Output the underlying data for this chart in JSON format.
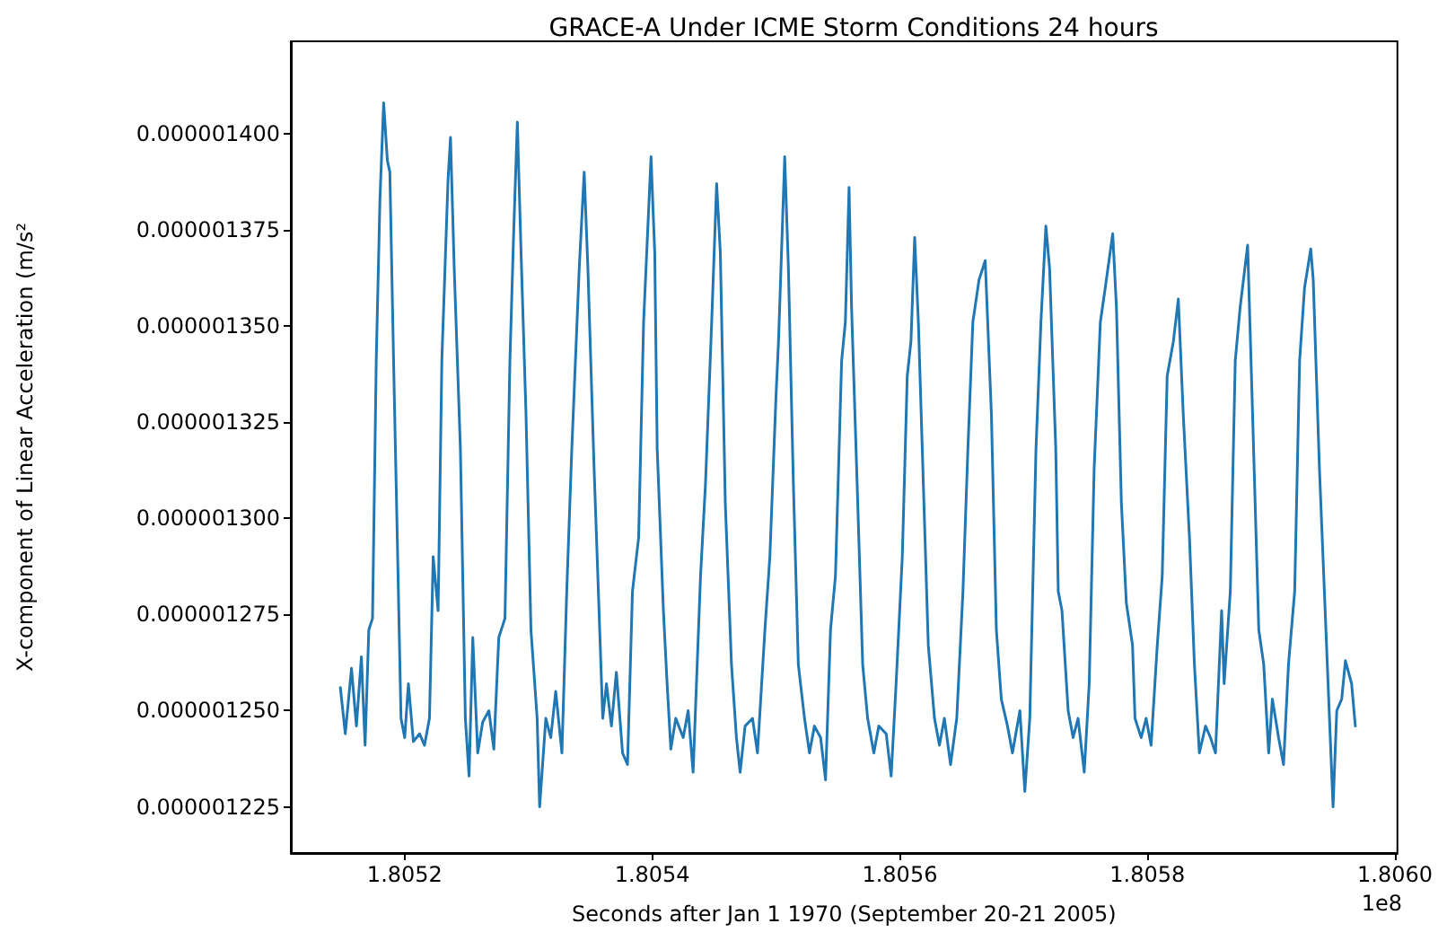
{
  "chart_data": {
    "type": "line",
    "title": "GRACE-A Under ICME Storm Conditions 24 hours",
    "xlabel": "Seconds after Jan 1 1970 (September 20-21 2005)",
    "ylabel": "X-component of Linear Acceleration (m/s²",
    "annotations": [
      "1e8"
    ],
    "xlim": [
      1.805108,
      1.806002
    ],
    "ylim": [
      1.213e-06,
      1.424e-06
    ],
    "xticks": [
      1.8052,
      1.8054,
      1.8056,
      1.8058,
      {
        "value": 1.806,
        "label": "1.8060"
      }
    ],
    "yticks": [
      {
        "value": 1.225e-06,
        "label": "0.000001225"
      },
      {
        "value": 1.25e-06,
        "label": "0.000001250"
      },
      {
        "value": 1.275e-06,
        "label": "0.000001275"
      },
      {
        "value": 1.3e-06,
        "label": "0.000001300"
      },
      {
        "value": 1.325e-06,
        "label": "0.000001325"
      },
      {
        "value": 1.35e-06,
        "label": "0.000001350"
      },
      {
        "value": 1.375e-06,
        "label": "0.000001375"
      },
      {
        "value": 1.4e-06,
        "label": "0.000001400"
      }
    ],
    "marker": "none",
    "line_style": "solid",
    "series": [
      {
        "color": "#1f77b4",
        "x": [
          1.805148,
          1.805152,
          1.805157,
          1.805161,
          1.805165,
          1.805168,
          1.805171,
          1.805174,
          1.805177,
          1.80518,
          1.805183,
          1.805186,
          1.805188,
          1.805191,
          1.805194,
          1.805197,
          1.8052,
          1.805203,
          1.805207,
          1.805212,
          1.805216,
          1.80522,
          1.805223,
          1.805227,
          1.80523,
          1.805235,
          1.805237,
          1.80524,
          1.805245,
          1.805249,
          1.805252,
          1.805255,
          1.805259,
          1.805263,
          1.805268,
          1.805272,
          1.805276,
          1.805281,
          1.805285,
          1.805288,
          1.805291,
          1.805294,
          1.805298,
          1.805302,
          1.805307,
          1.805309,
          1.805314,
          1.805318,
          1.805322,
          1.805327,
          1.805331,
          1.805335,
          1.805341,
          1.805345,
          1.805348,
          1.805353,
          1.805357,
          1.80536,
          1.805363,
          1.805367,
          1.805371,
          1.805376,
          1.80538,
          1.805384,
          1.805389,
          1.805393,
          1.805399,
          1.805402,
          1.805404,
          1.805409,
          1.805412,
          1.805415,
          1.805419,
          1.805425,
          1.805429,
          1.805433,
          1.805439,
          1.805443,
          1.805448,
          1.805452,
          1.805455,
          1.805459,
          1.805464,
          1.805468,
          1.805471,
          1.805475,
          1.805481,
          1.805485,
          1.805491,
          1.805495,
          1.8055,
          1.805502,
          1.805507,
          1.80551,
          1.805514,
          1.805518,
          1.805523,
          1.805527,
          1.805531,
          1.805536,
          1.80554,
          1.805544,
          1.805548,
          1.805553,
          1.805556,
          1.805559,
          1.805561,
          1.805566,
          1.80557,
          1.805574,
          1.805579,
          1.805583,
          1.805589,
          1.805593,
          1.805597,
          1.805602,
          1.805606,
          1.805609,
          1.805612,
          1.805615,
          1.805619,
          1.805623,
          1.805628,
          1.805632,
          1.805636,
          1.805641,
          1.805646,
          1.805651,
          1.805655,
          1.805659,
          1.805664,
          1.805669,
          1.805674,
          1.805678,
          1.805682,
          1.805687,
          1.805691,
          1.805697,
          1.805701,
          1.805705,
          1.80571,
          1.805714,
          1.805718,
          1.805721,
          1.805726,
          1.805728,
          1.805731,
          1.805736,
          1.80574,
          1.805744,
          1.805749,
          1.805753,
          1.805757,
          1.805762,
          1.805766,
          1.805772,
          1.805775,
          1.805779,
          1.805783,
          1.805788,
          1.80579,
          1.805795,
          1.805799,
          1.805803,
          1.805808,
          1.805812,
          1.805816,
          1.805821,
          1.805825,
          1.805829,
          1.805834,
          1.805838,
          1.805842,
          1.805847,
          1.805851,
          1.805855,
          1.80586,
          1.805862,
          1.805867,
          1.805871,
          1.805875,
          1.805881,
          1.805885,
          1.80589,
          1.805894,
          1.805898,
          1.805901,
          1.805906,
          1.80591,
          1.805914,
          1.805919,
          1.805923,
          1.805927,
          1.805932,
          1.805934,
          1.805939,
          1.805943,
          1.805946,
          1.80595,
          1.805953,
          1.805957,
          1.80596,
          1.805965,
          1.805968
        ],
        "values": [
          1.256e-06,
          1.244e-06,
          1.261e-06,
          1.246e-06,
          1.264e-06,
          1.241e-06,
          1.271e-06,
          1.274e-06,
          1.341e-06,
          1.383e-06,
          1.408e-06,
          1.393e-06,
          1.39e-06,
          1.341e-06,
          1.295e-06,
          1.248e-06,
          1.243e-06,
          1.257e-06,
          1.242e-06,
          1.244e-06,
          1.241e-06,
          1.248e-06,
          1.29e-06,
          1.276e-06,
          1.341e-06,
          1.388e-06,
          1.399e-06,
          1.365e-06,
          1.318e-06,
          1.248e-06,
          1.233e-06,
          1.269e-06,
          1.239e-06,
          1.247e-06,
          1.25e-06,
          1.24e-06,
          1.269e-06,
          1.274e-06,
          1.341e-06,
          1.374e-06,
          1.403e-06,
          1.369e-06,
          1.327e-06,
          1.271e-06,
          1.248e-06,
          1.225e-06,
          1.248e-06,
          1.243e-06,
          1.255e-06,
          1.239e-06,
          1.282e-06,
          1.318e-06,
          1.365e-06,
          1.39e-06,
          1.365e-06,
          1.313e-06,
          1.276e-06,
          1.248e-06,
          1.257e-06,
          1.246e-06,
          1.26e-06,
          1.239e-06,
          1.236e-06,
          1.281e-06,
          1.295e-06,
          1.351e-06,
          1.394e-06,
          1.369e-06,
          1.318e-06,
          1.276e-06,
          1.257e-06,
          1.24e-06,
          1.248e-06,
          1.243e-06,
          1.25e-06,
          1.234e-06,
          1.285e-06,
          1.309e-06,
          1.351e-06,
          1.387e-06,
          1.369e-06,
          1.304e-06,
          1.262e-06,
          1.243e-06,
          1.234e-06,
          1.246e-06,
          1.248e-06,
          1.239e-06,
          1.271e-06,
          1.29e-06,
          1.332e-06,
          1.346e-06,
          1.394e-06,
          1.365e-06,
          1.309e-06,
          1.262e-06,
          1.248e-06,
          1.239e-06,
          1.246e-06,
          1.243e-06,
          1.232e-06,
          1.271e-06,
          1.285e-06,
          1.341e-06,
          1.351e-06,
          1.386e-06,
          1.355e-06,
          1.304e-06,
          1.262e-06,
          1.248e-06,
          1.239e-06,
          1.246e-06,
          1.244e-06,
          1.233e-06,
          1.257e-06,
          1.29e-06,
          1.337e-06,
          1.346e-06,
          1.373e-06,
          1.351e-06,
          1.309e-06,
          1.267e-06,
          1.248e-06,
          1.241e-06,
          1.248e-06,
          1.236e-06,
          1.248e-06,
          1.281e-06,
          1.318e-06,
          1.351e-06,
          1.362e-06,
          1.367e-06,
          1.327e-06,
          1.271e-06,
          1.253e-06,
          1.246e-06,
          1.239e-06,
          1.25e-06,
          1.229e-06,
          1.248e-06,
          1.318e-06,
          1.351e-06,
          1.376e-06,
          1.365e-06,
          1.318e-06,
          1.281e-06,
          1.276e-06,
          1.25e-06,
          1.243e-06,
          1.248e-06,
          1.234e-06,
          1.257e-06,
          1.313e-06,
          1.351e-06,
          1.36e-06,
          1.374e-06,
          1.355e-06,
          1.304e-06,
          1.278e-06,
          1.267e-06,
          1.248e-06,
          1.243e-06,
          1.248e-06,
          1.241e-06,
          1.267e-06,
          1.285e-06,
          1.337e-06,
          1.346e-06,
          1.357e-06,
          1.327e-06,
          1.295e-06,
          1.262e-06,
          1.239e-06,
          1.246e-06,
          1.243e-06,
          1.239e-06,
          1.276e-06,
          1.257e-06,
          1.281e-06,
          1.341e-06,
          1.355e-06,
          1.371e-06,
          1.327e-06,
          1.271e-06,
          1.262e-06,
          1.239e-06,
          1.253e-06,
          1.243e-06,
          1.236e-06,
          1.262e-06,
          1.281e-06,
          1.341e-06,
          1.36e-06,
          1.37e-06,
          1.362e-06,
          1.313e-06,
          1.281e-06,
          1.257e-06,
          1.225e-06,
          1.25e-06,
          1.253e-06,
          1.263e-06,
          1.257e-06,
          1.246e-06
        ]
      }
    ]
  }
}
